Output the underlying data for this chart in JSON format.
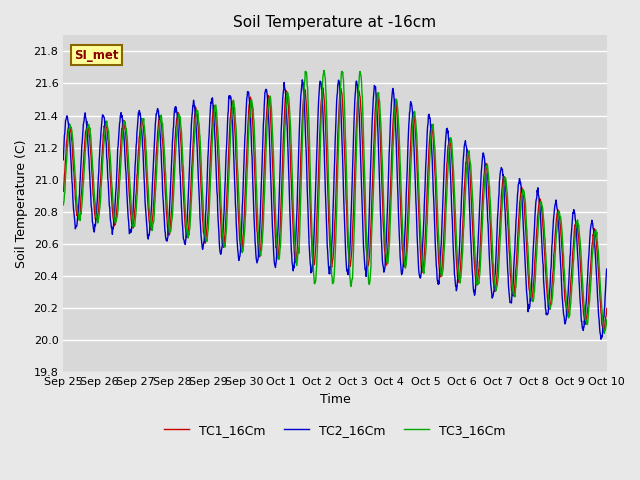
{
  "title": "Soil Temperature at -16cm",
  "xlabel": "Time",
  "ylabel": "Soil Temperature (C)",
  "ylim": [
    19.8,
    21.9
  ],
  "yticks": [
    19.8,
    20.0,
    20.2,
    20.4,
    20.6,
    20.8,
    21.0,
    21.2,
    21.4,
    21.6,
    21.8
  ],
  "bg_color": "#e8e8e8",
  "plot_bg_color": "#d8d8d8",
  "line_colors": [
    "#cc0000",
    "#0000cc",
    "#00aa00"
  ],
  "line_labels": [
    "TC1_16Cm",
    "TC2_16Cm",
    "TC3_16Cm"
  ],
  "annotation_text": "SI_met",
  "annotation_box_color": "#ffff99",
  "annotation_border_color": "#886600",
  "tick_labels": [
    "Sep 25",
    "Sep 26",
    "Sep 27",
    "Sep 28",
    "Sep 29",
    "Sep 30",
    "Oct 1",
    "Oct 2",
    "Oct 3",
    "Oct 4",
    "Oct 5",
    "Oct 6",
    "Oct 7",
    "Oct 8",
    "Oct 9",
    "Oct 10"
  ],
  "n_days": 15,
  "figsize": [
    6.4,
    4.8
  ],
  "dpi": 100
}
